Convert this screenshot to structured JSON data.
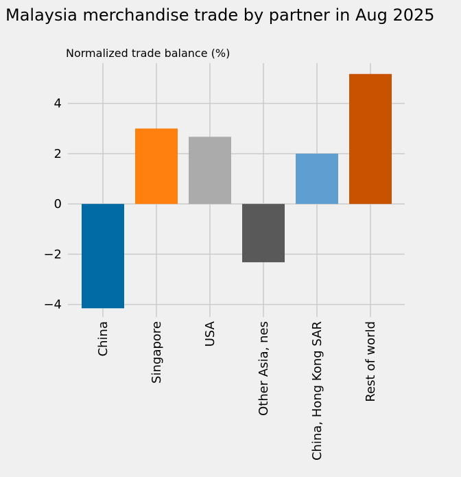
{
  "chart_data": {
    "type": "bar",
    "title": "Malaysia merchandise trade by partner in Aug 2025",
    "subtitle": "Normalized trade balance (%)",
    "xlabel": "",
    "ylabel": "",
    "categories": [
      "China",
      "Singapore",
      "USA",
      "Other Asia, nes",
      "China, Hong Kong SAR",
      "Rest of world"
    ],
    "values": [
      -4.15,
      3.0,
      2.67,
      -2.32,
      2.0,
      5.17
    ],
    "colors": [
      "#006ba4",
      "#ff800e",
      "#ababab",
      "#595959",
      "#5f9ed1",
      "#c85200"
    ],
    "ylim": [
      -4.5,
      5.6
    ],
    "yticks": [
      -4,
      -2,
      0,
      2,
      4
    ],
    "grid": true,
    "legend": "none"
  }
}
